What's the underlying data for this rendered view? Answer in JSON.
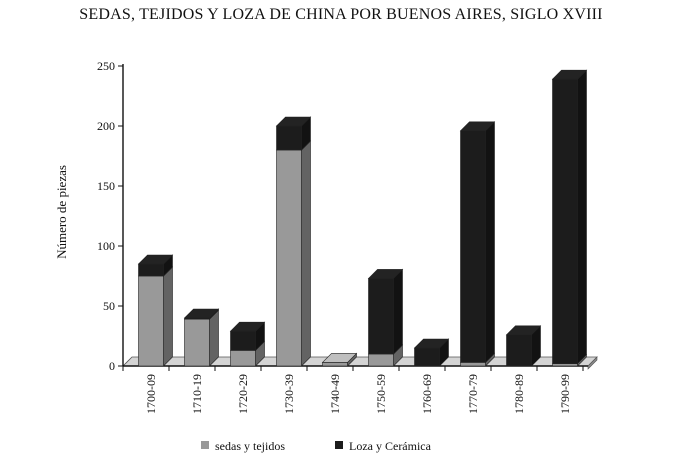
{
  "chart_data": {
    "type": "bar",
    "stacked": true,
    "style": "3d",
    "title": "SEDAS, TEJIDOS Y LOZA DE CHINA POR BUENOS AIRES, SIGLO XVIII",
    "xlabel": "",
    "ylabel": "Número de piezas",
    "ylim": [
      0,
      250
    ],
    "yticks": [
      0,
      50,
      100,
      150,
      200,
      250
    ],
    "grid": false,
    "legend_position": "bottom",
    "categories": [
      "1700-09",
      "1710-19",
      "1720-29",
      "1730-39",
      "1740-49",
      "1750-59",
      "1760-69",
      "1770-79",
      "1780-89",
      "1790-99"
    ],
    "series": [
      {
        "name": "sedas y tejidos",
        "color": "#999999",
        "values": [
          75,
          39,
          13,
          180,
          3,
          10,
          0,
          3,
          0,
          2
        ]
      },
      {
        "name": "Loza y Cerámica",
        "color": "#1c1c1c",
        "values": [
          10,
          1,
          16,
          20,
          0,
          63,
          15,
          193,
          26,
          237
        ]
      }
    ]
  }
}
